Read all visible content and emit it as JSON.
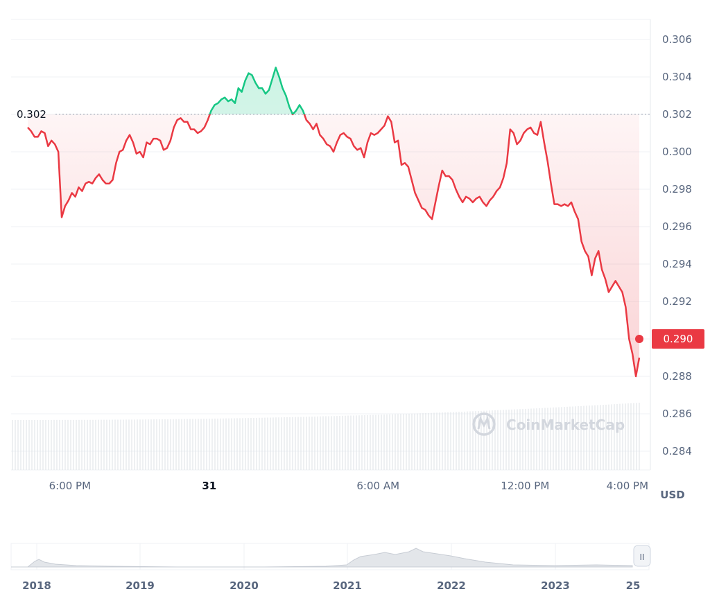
{
  "chart_data": {
    "type": "line",
    "title": "",
    "ylabel": "",
    "unit": "USD",
    "ylim": [
      0.2832,
      0.3066
    ],
    "y_ticks": [
      "0.306",
      "0.304",
      "0.302",
      "0.300",
      "0.298",
      "0.296",
      "0.294",
      "0.292",
      "0.290",
      "0.288",
      "0.286",
      "0.284"
    ],
    "x_ticks": [
      {
        "label": "6:00 PM",
        "t": 0.092,
        "bold": false
      },
      {
        "label": "31",
        "t": 0.31,
        "bold": true
      },
      {
        "label": "6:00 AM",
        "t": 0.574,
        "bold": false
      },
      {
        "label": "12:00 PM",
        "t": 0.804,
        "bold": false
      },
      {
        "label": "4:00 PM",
        "t": 0.964,
        "bold": false
      }
    ],
    "reference": {
      "value": 0.302,
      "label": "0.302"
    },
    "current": {
      "value": 0.29,
      "label": "0.290"
    },
    "series": [
      {
        "values": [
          0.3013,
          0.3011,
          0.3008,
          0.3008,
          0.3011,
          0.301,
          0.3003,
          0.3006,
          0.3004,
          0.3,
          0.2965,
          0.2971,
          0.2974,
          0.2978,
          0.2976,
          0.2981,
          0.2979,
          0.2983,
          0.2984,
          0.2983,
          0.2986,
          0.2988,
          0.2985,
          0.2983,
          0.2983,
          0.2985,
          0.2994,
          0.3,
          0.3001,
          0.3006,
          0.3009,
          0.3005,
          0.2999,
          0.3,
          0.2997,
          0.3005,
          0.3004,
          0.3007,
          0.3007,
          0.3006,
          0.3001,
          0.3002,
          0.3006,
          0.3013,
          0.3017,
          0.3018,
          0.3016,
          0.3016,
          0.3012,
          0.3012,
          0.301,
          0.3011,
          0.3013,
          0.3017,
          0.3022,
          0.3025,
          0.3026,
          0.3028,
          0.3029,
          0.3027,
          0.3028,
          0.3026,
          0.3034,
          0.3032,
          0.3038,
          0.3042,
          0.3041,
          0.3037,
          0.3034,
          0.3034,
          0.3031,
          0.3033,
          0.3039,
          0.3045,
          0.304,
          0.3034,
          0.303,
          0.3024,
          0.302,
          0.3022,
          0.3025,
          0.3022,
          0.3017,
          0.3015,
          0.3012,
          0.3015,
          0.3009,
          0.3007,
          0.3004,
          0.3003,
          0.3,
          0.3005,
          0.3009,
          0.301,
          0.3008,
          0.3007,
          0.3003,
          0.3001,
          0.3002,
          0.2997,
          0.3005,
          0.301,
          0.3009,
          0.301,
          0.3012,
          0.3014,
          0.3019,
          0.3016,
          0.3005,
          0.3006,
          0.2993,
          0.2994,
          0.2992,
          0.2985,
          0.2978,
          0.2974,
          0.297,
          0.2969,
          0.2966,
          0.2964,
          0.2973,
          0.2982,
          0.299,
          0.2987,
          0.2987,
          0.2985,
          0.298,
          0.2976,
          0.2973,
          0.2976,
          0.2975,
          0.2973,
          0.2975,
          0.2976,
          0.2973,
          0.2971,
          0.2974,
          0.2976,
          0.2979,
          0.2981,
          0.2986,
          0.2994,
          0.3012,
          0.301,
          0.3004,
          0.3006,
          0.301,
          0.3012,
          0.3013,
          0.301,
          0.3009,
          0.3016,
          0.3005,
          0.2995,
          0.2983,
          0.2972,
          0.2972,
          0.2971,
          0.2972,
          0.2971,
          0.2973,
          0.2968,
          0.2964,
          0.2952,
          0.2947,
          0.2944,
          0.2934,
          0.2943,
          0.2947,
          0.2937,
          0.2932,
          0.2925,
          0.2928,
          0.2931,
          0.2928,
          0.2925,
          0.2917,
          0.29,
          0.2892,
          0.288,
          0.289
        ]
      }
    ],
    "volume": {
      "label": "volume",
      "start": 0.2,
      "end": 0.23
    },
    "navigator": {
      "labels": [
        "2018",
        "2019",
        "2020",
        "2021",
        "2022",
        "2023",
        "25"
      ],
      "handle_label": "II"
    },
    "watermark": "CoinMarketCap"
  },
  "colors": {
    "up": "#16c784",
    "down": "#ea3943",
    "grid": "#eff2f5",
    "axis": "#58667e"
  }
}
